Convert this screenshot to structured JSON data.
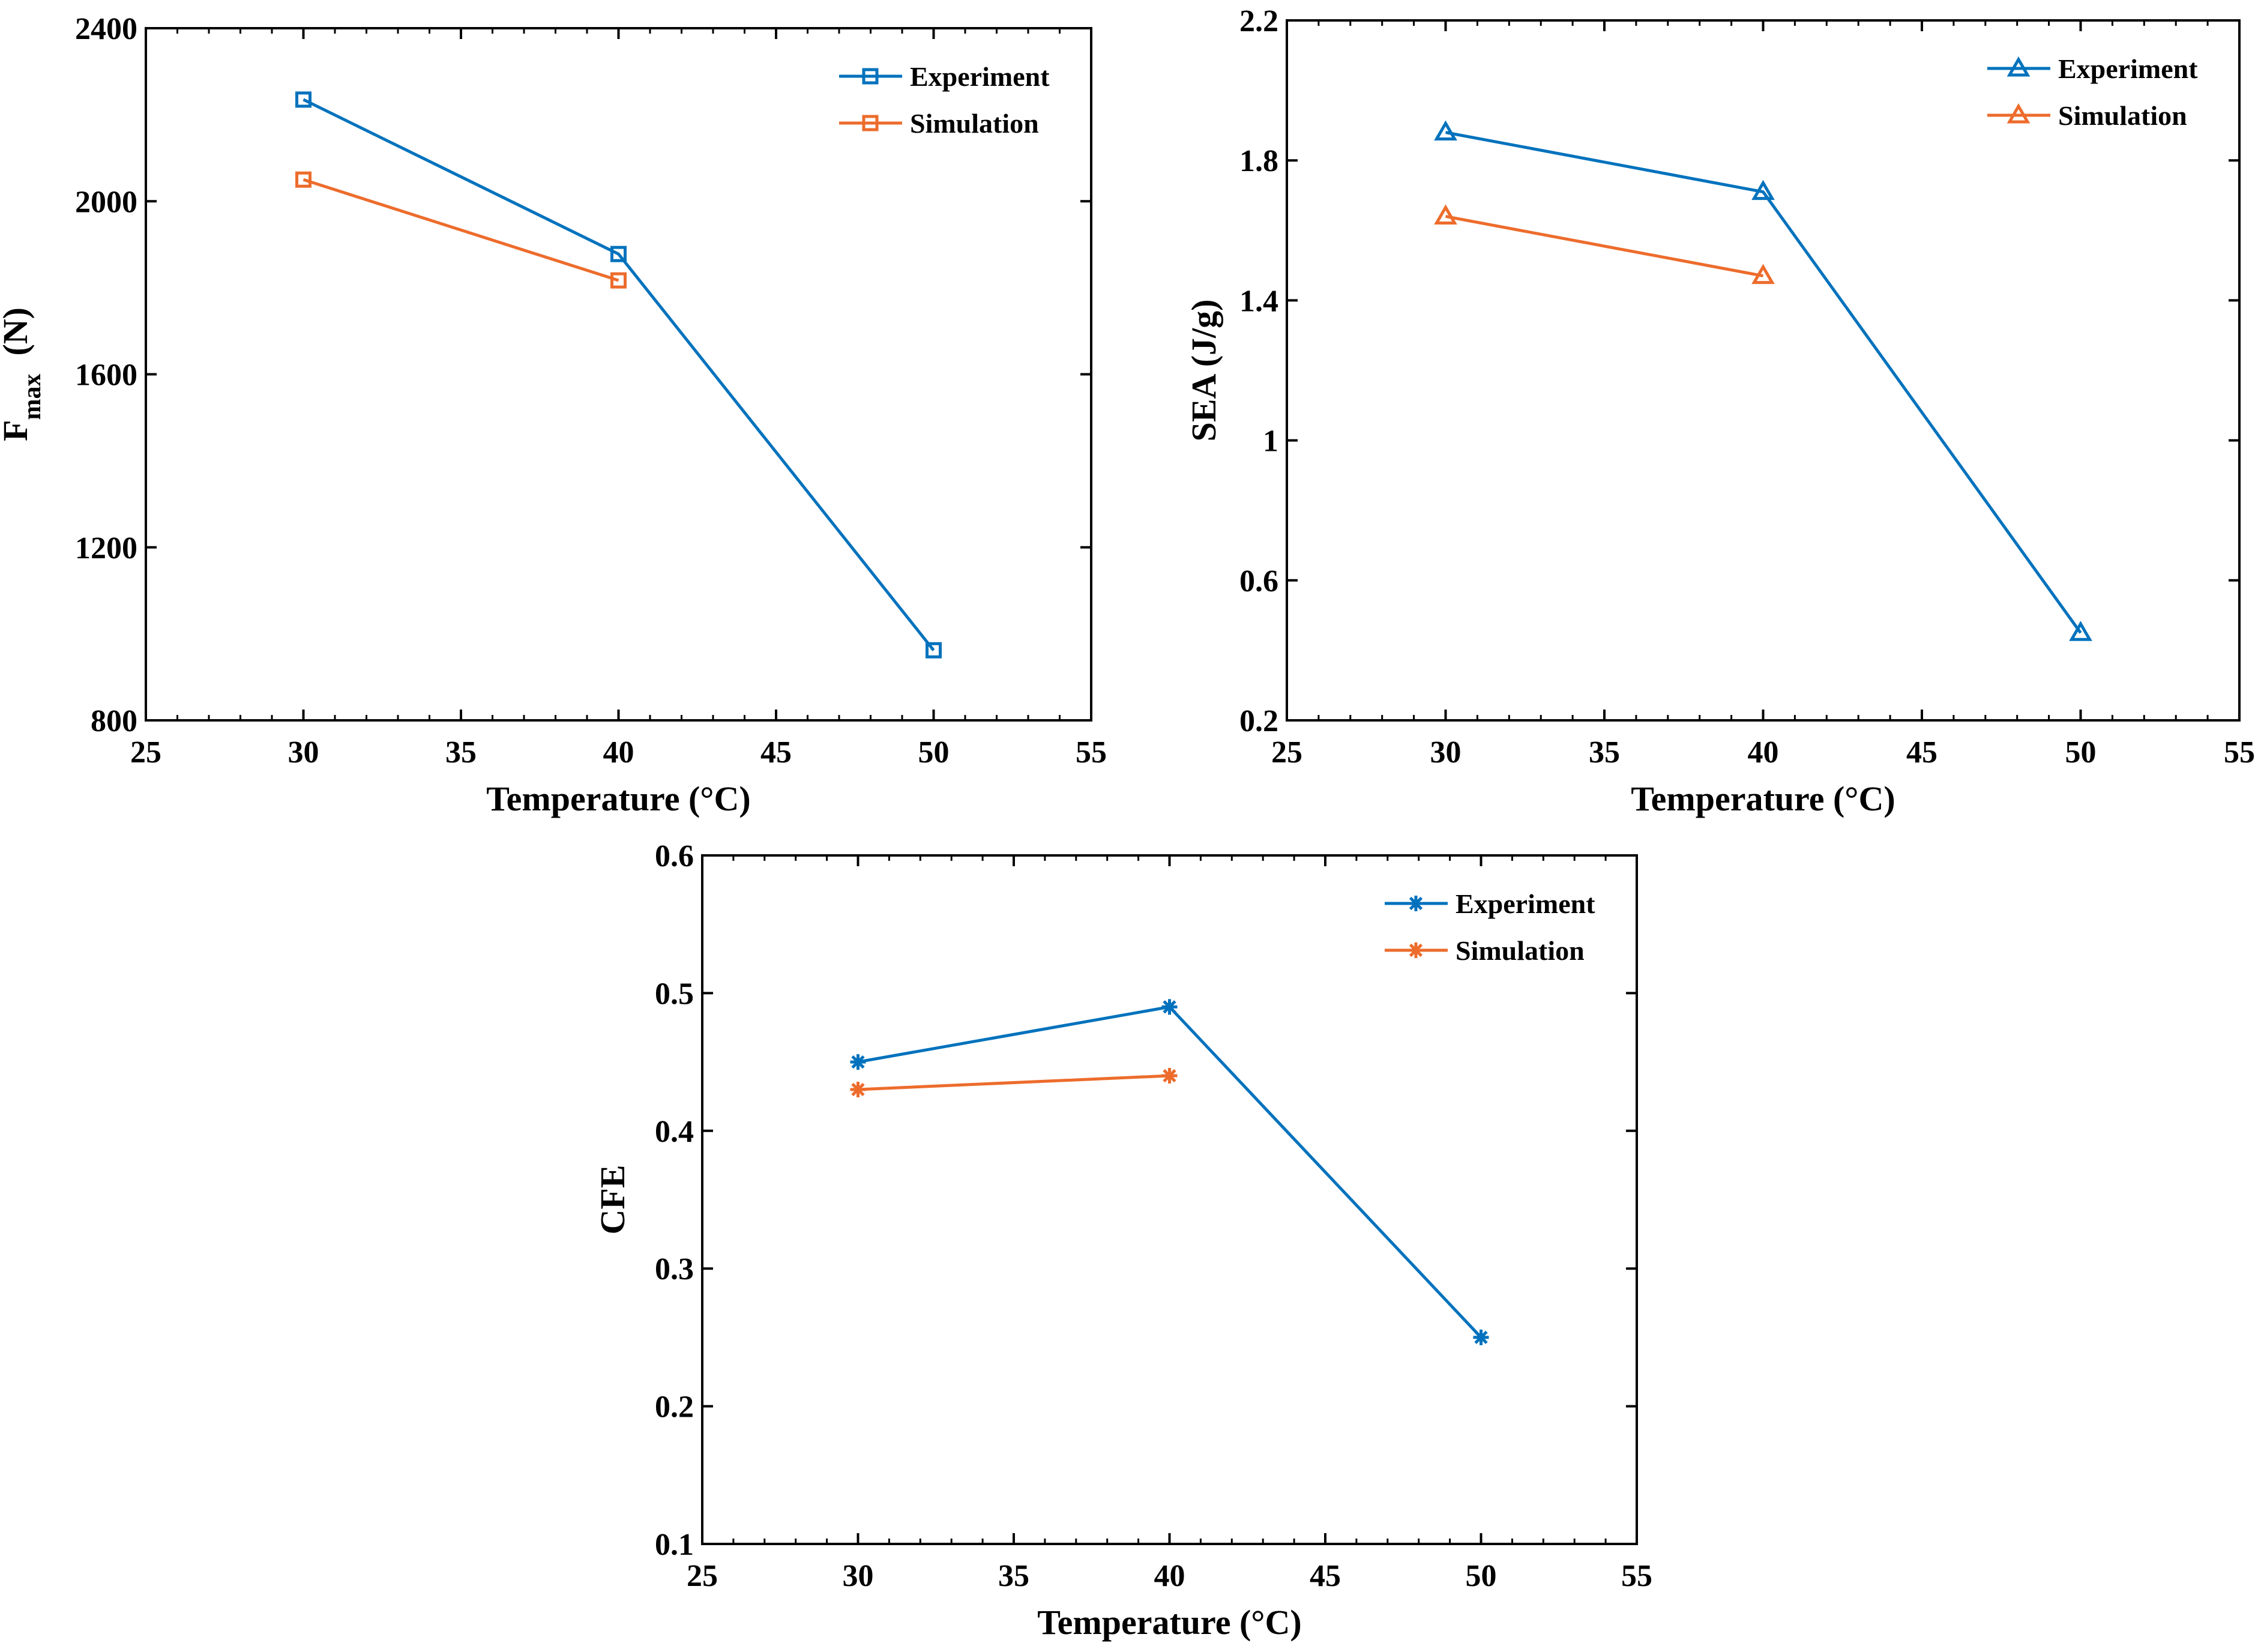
{
  "colors": {
    "experiment": "#0072BD",
    "simulation": "#ED6C2C",
    "axis": "#000000",
    "background": "#ffffff"
  },
  "chart_data": [
    {
      "id": "fmax",
      "type": "line",
      "marker": "square",
      "ylabel_main": "F",
      "ylabel_sub": "max",
      "ylabel_unit": "(N)",
      "xlabel": "Temperature (°C)",
      "xlim": [
        25,
        55
      ],
      "ylim": [
        800,
        2400
      ],
      "xticks": [
        25,
        30,
        35,
        40,
        45,
        50,
        55
      ],
      "yticks": [
        800,
        1200,
        1600,
        2000,
        2400
      ],
      "ytick_labels": [
        "800",
        "1200",
        "1600",
        "2000",
        "2400"
      ],
      "legend_position": "top-right",
      "grid": false,
      "series": [
        {
          "name": "Experiment",
          "x": [
            30,
            40,
            50
          ],
          "y": [
            2235,
            1878,
            962
          ]
        },
        {
          "name": "Simulation",
          "x": [
            30,
            40
          ],
          "y": [
            2050,
            1817
          ]
        }
      ]
    },
    {
      "id": "sea",
      "type": "line",
      "marker": "triangle",
      "ylabel": "SEA  (J/g)",
      "xlabel": "Temperature (°C)",
      "xlim": [
        25,
        55
      ],
      "ylim": [
        0.2,
        2.2
      ],
      "xticks": [
        25,
        30,
        35,
        40,
        45,
        50,
        55
      ],
      "yticks": [
        0.2,
        0.6,
        1.0,
        1.4,
        1.8,
        2.2
      ],
      "ytick_labels": [
        "0.2",
        "0.6",
        "1",
        "1.4",
        "1.8",
        "2.2"
      ],
      "legend_position": "top-right",
      "grid": false,
      "series": [
        {
          "name": "Experiment",
          "x": [
            30,
            40,
            50
          ],
          "y": [
            1.88,
            1.71,
            0.45
          ]
        },
        {
          "name": "Simulation",
          "x": [
            30,
            40
          ],
          "y": [
            1.64,
            1.47
          ]
        }
      ]
    },
    {
      "id": "cfe",
      "type": "line",
      "marker": "asterisk",
      "ylabel": "CFE",
      "xlabel": "Temperature (°C)",
      "xlim": [
        25,
        55
      ],
      "ylim": [
        0.1,
        0.6
      ],
      "xticks": [
        25,
        30,
        35,
        40,
        45,
        50,
        55
      ],
      "yticks": [
        0.1,
        0.2,
        0.3,
        0.4,
        0.5,
        0.6
      ],
      "ytick_labels": [
        "0.1",
        "0.2",
        "0.3",
        "0.4",
        "0.5",
        "0.6"
      ],
      "legend_position": "top-right",
      "grid": false,
      "series": [
        {
          "name": "Experiment",
          "x": [
            30,
            40,
            50
          ],
          "y": [
            0.45,
            0.49,
            0.25
          ]
        },
        {
          "name": "Simulation",
          "x": [
            30,
            40
          ],
          "y": [
            0.43,
            0.44
          ]
        }
      ]
    }
  ]
}
